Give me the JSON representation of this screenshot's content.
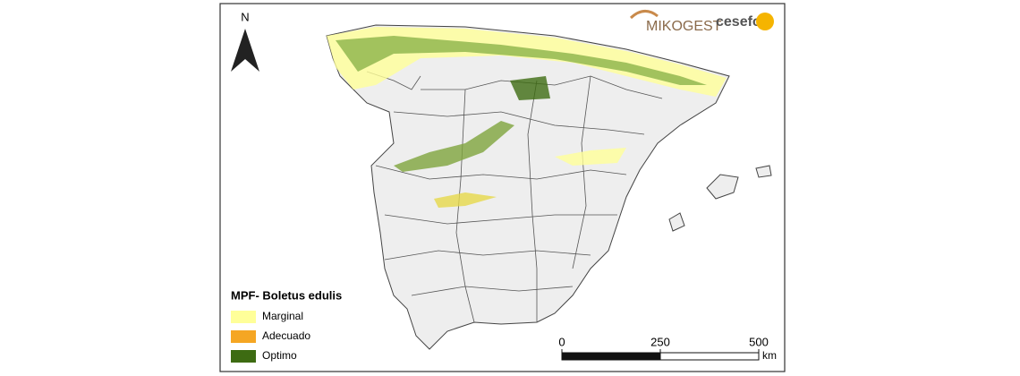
{
  "north_label": "N",
  "logos": [
    "MIKOGEST",
    "cesefor"
  ],
  "legend": {
    "title": "MPF- Boletus edulis",
    "items": [
      {
        "label": "Marginal",
        "color": "#ffff99"
      },
      {
        "label": "Adecuado",
        "color": "#f5a623"
      },
      {
        "label": "Optimo",
        "color": "#3d6b12"
      }
    ]
  },
  "scale_bar": {
    "ticks": [
      0,
      250,
      500
    ],
    "unit": "km"
  }
}
